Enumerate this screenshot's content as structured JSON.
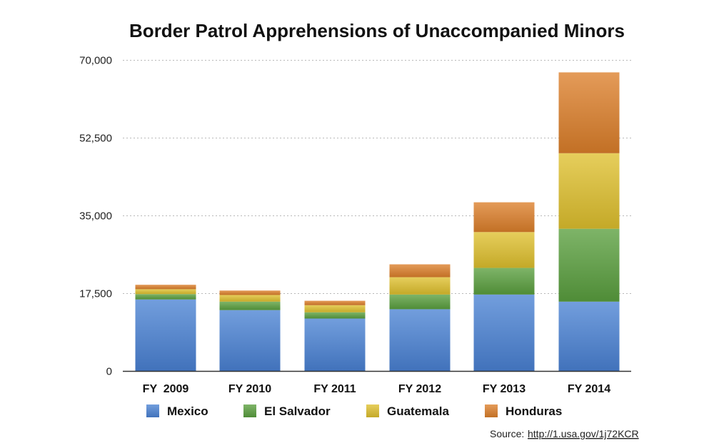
{
  "chart_data": {
    "type": "bar",
    "stacked": true,
    "title": "Border Patrol Apprehensions of Unaccompanied Minors",
    "xlabel": "",
    "ylabel": "",
    "ylim": [
      0,
      70000
    ],
    "yticks": [
      0,
      17500,
      35000,
      52500,
      70000
    ],
    "ytick_labels": [
      "0",
      "17,500",
      "35,000",
      "52,500",
      "70,000"
    ],
    "categories": [
      "FY  2009",
      "FY 2010",
      "FY 2011",
      "FY 2012",
      "FY 2013",
      "FY 2014"
    ],
    "series": [
      {
        "name": "Mexico",
        "color": "#4a82d4",
        "values": [
          16100,
          13700,
          11800,
          13900,
          17200,
          15600
        ]
      },
      {
        "name": "El Salvador",
        "color": "#5a9f3e",
        "values": [
          1200,
          1900,
          1400,
          3300,
          5990,
          16400
        ]
      },
      {
        "name": "Guatemala",
        "color": "#dfc02e",
        "values": [
          1100,
          1500,
          1600,
          3900,
          8070,
          17000
        ]
      },
      {
        "name": "Honduras",
        "color": "#dc7f2a",
        "values": [
          1000,
          1000,
          1000,
          2900,
          6700,
          18200
        ]
      }
    ],
    "grid": true,
    "legend_position": "bottom"
  },
  "source": {
    "label": "Source:",
    "url": "http://1.usa.gov/1j72KCR"
  }
}
